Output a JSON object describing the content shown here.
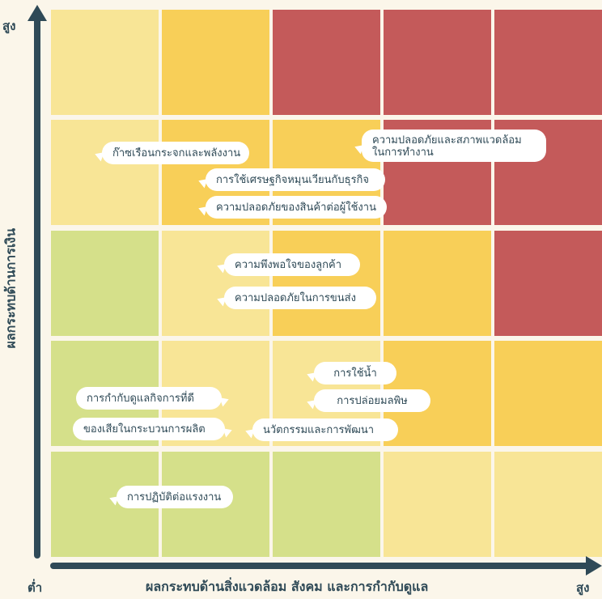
{
  "axes": {
    "y_label": "ผลกระทบด้านการเงิน",
    "y_high": "สูง",
    "x_label": "ผลกระทบด้านสิ่งแวดล้อม สังคม และการกำกับดูแล",
    "x_low": "ต่ำ",
    "x_high": "สูง"
  },
  "colors": {
    "green": "#d5e08a",
    "light_yellow": "#f8e596",
    "yellow": "#f8cf58",
    "red": "#c45a5a",
    "axis": "#2f4a57",
    "background": "#fbf6ea"
  },
  "matrix": [
    [
      "light_yellow",
      "yellow",
      "red",
      "red",
      "red"
    ],
    [
      "light_yellow",
      "yellow",
      "yellow",
      "red",
      "red"
    ],
    [
      "green",
      "light_yellow",
      "yellow",
      "yellow",
      "red"
    ],
    [
      "green",
      "light_yellow",
      "light_yellow",
      "yellow",
      "yellow"
    ],
    [
      "green",
      "green",
      "green",
      "light_yellow",
      "light_yellow"
    ]
  ],
  "issues": [
    "ก๊าซเรือนกระจกและพลังงาน",
    "การใช้เศรษฐกิจหมุนเวียนกับธุรกิจ",
    "ความปลอดภัยของสินค้าต่อผู้ใช้งาน",
    "ความปลอดภัยและสภาพแวดล้อม\nในการทำงาน",
    "ความพึงพอใจของลูกค้า",
    "ความปลอดภัยในการขนส่ง",
    "การใช้น้ำ",
    "การปล่อยมลพิษ",
    "การกำกับดูแลกิจการที่ดี",
    "ของเสียในกระบวนการผลิต",
    "นวัตกรรมและการพัฒนา",
    "การปฏิบัติต่อแรงงาน"
  ]
}
